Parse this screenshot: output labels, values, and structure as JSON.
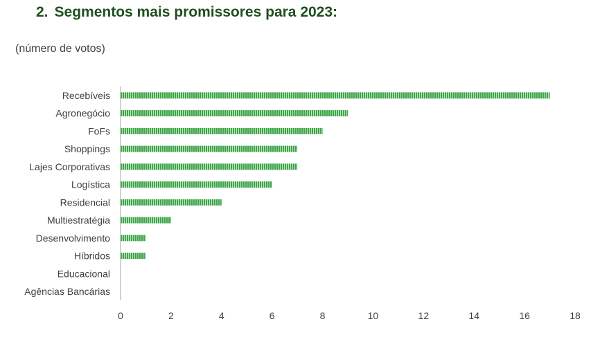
{
  "heading": {
    "number": "2.",
    "text": "Segmentos mais promissores para 2023:"
  },
  "unit_label": "(número de votos)",
  "colors": {
    "heading": "#1e4f1e",
    "bar_stripe_dark": "#3fa64a",
    "bar_stripe_light": "#bfe3bf",
    "text": "#404040",
    "axis": "#a6a6a6"
  },
  "chart_data": {
    "type": "bar",
    "orientation": "horizontal",
    "categories": [
      "Recebíveis",
      "Agronegócio",
      "FoFs",
      "Shoppings",
      "Lajes Corporativas",
      "Logística",
      "Residencial",
      "Multiestratégia",
      "Desenvolvimento",
      "Híbridos",
      "Educacional",
      "Agências Bancárias"
    ],
    "values": [
      17,
      9,
      8,
      7,
      7,
      6,
      4,
      2,
      1,
      1,
      0,
      0
    ],
    "xlim": [
      0,
      18
    ],
    "xticks": [
      "0",
      "2",
      "4",
      "6",
      "8",
      "10",
      "12",
      "14",
      "16",
      "18"
    ],
    "grid": false,
    "legend": "none"
  }
}
